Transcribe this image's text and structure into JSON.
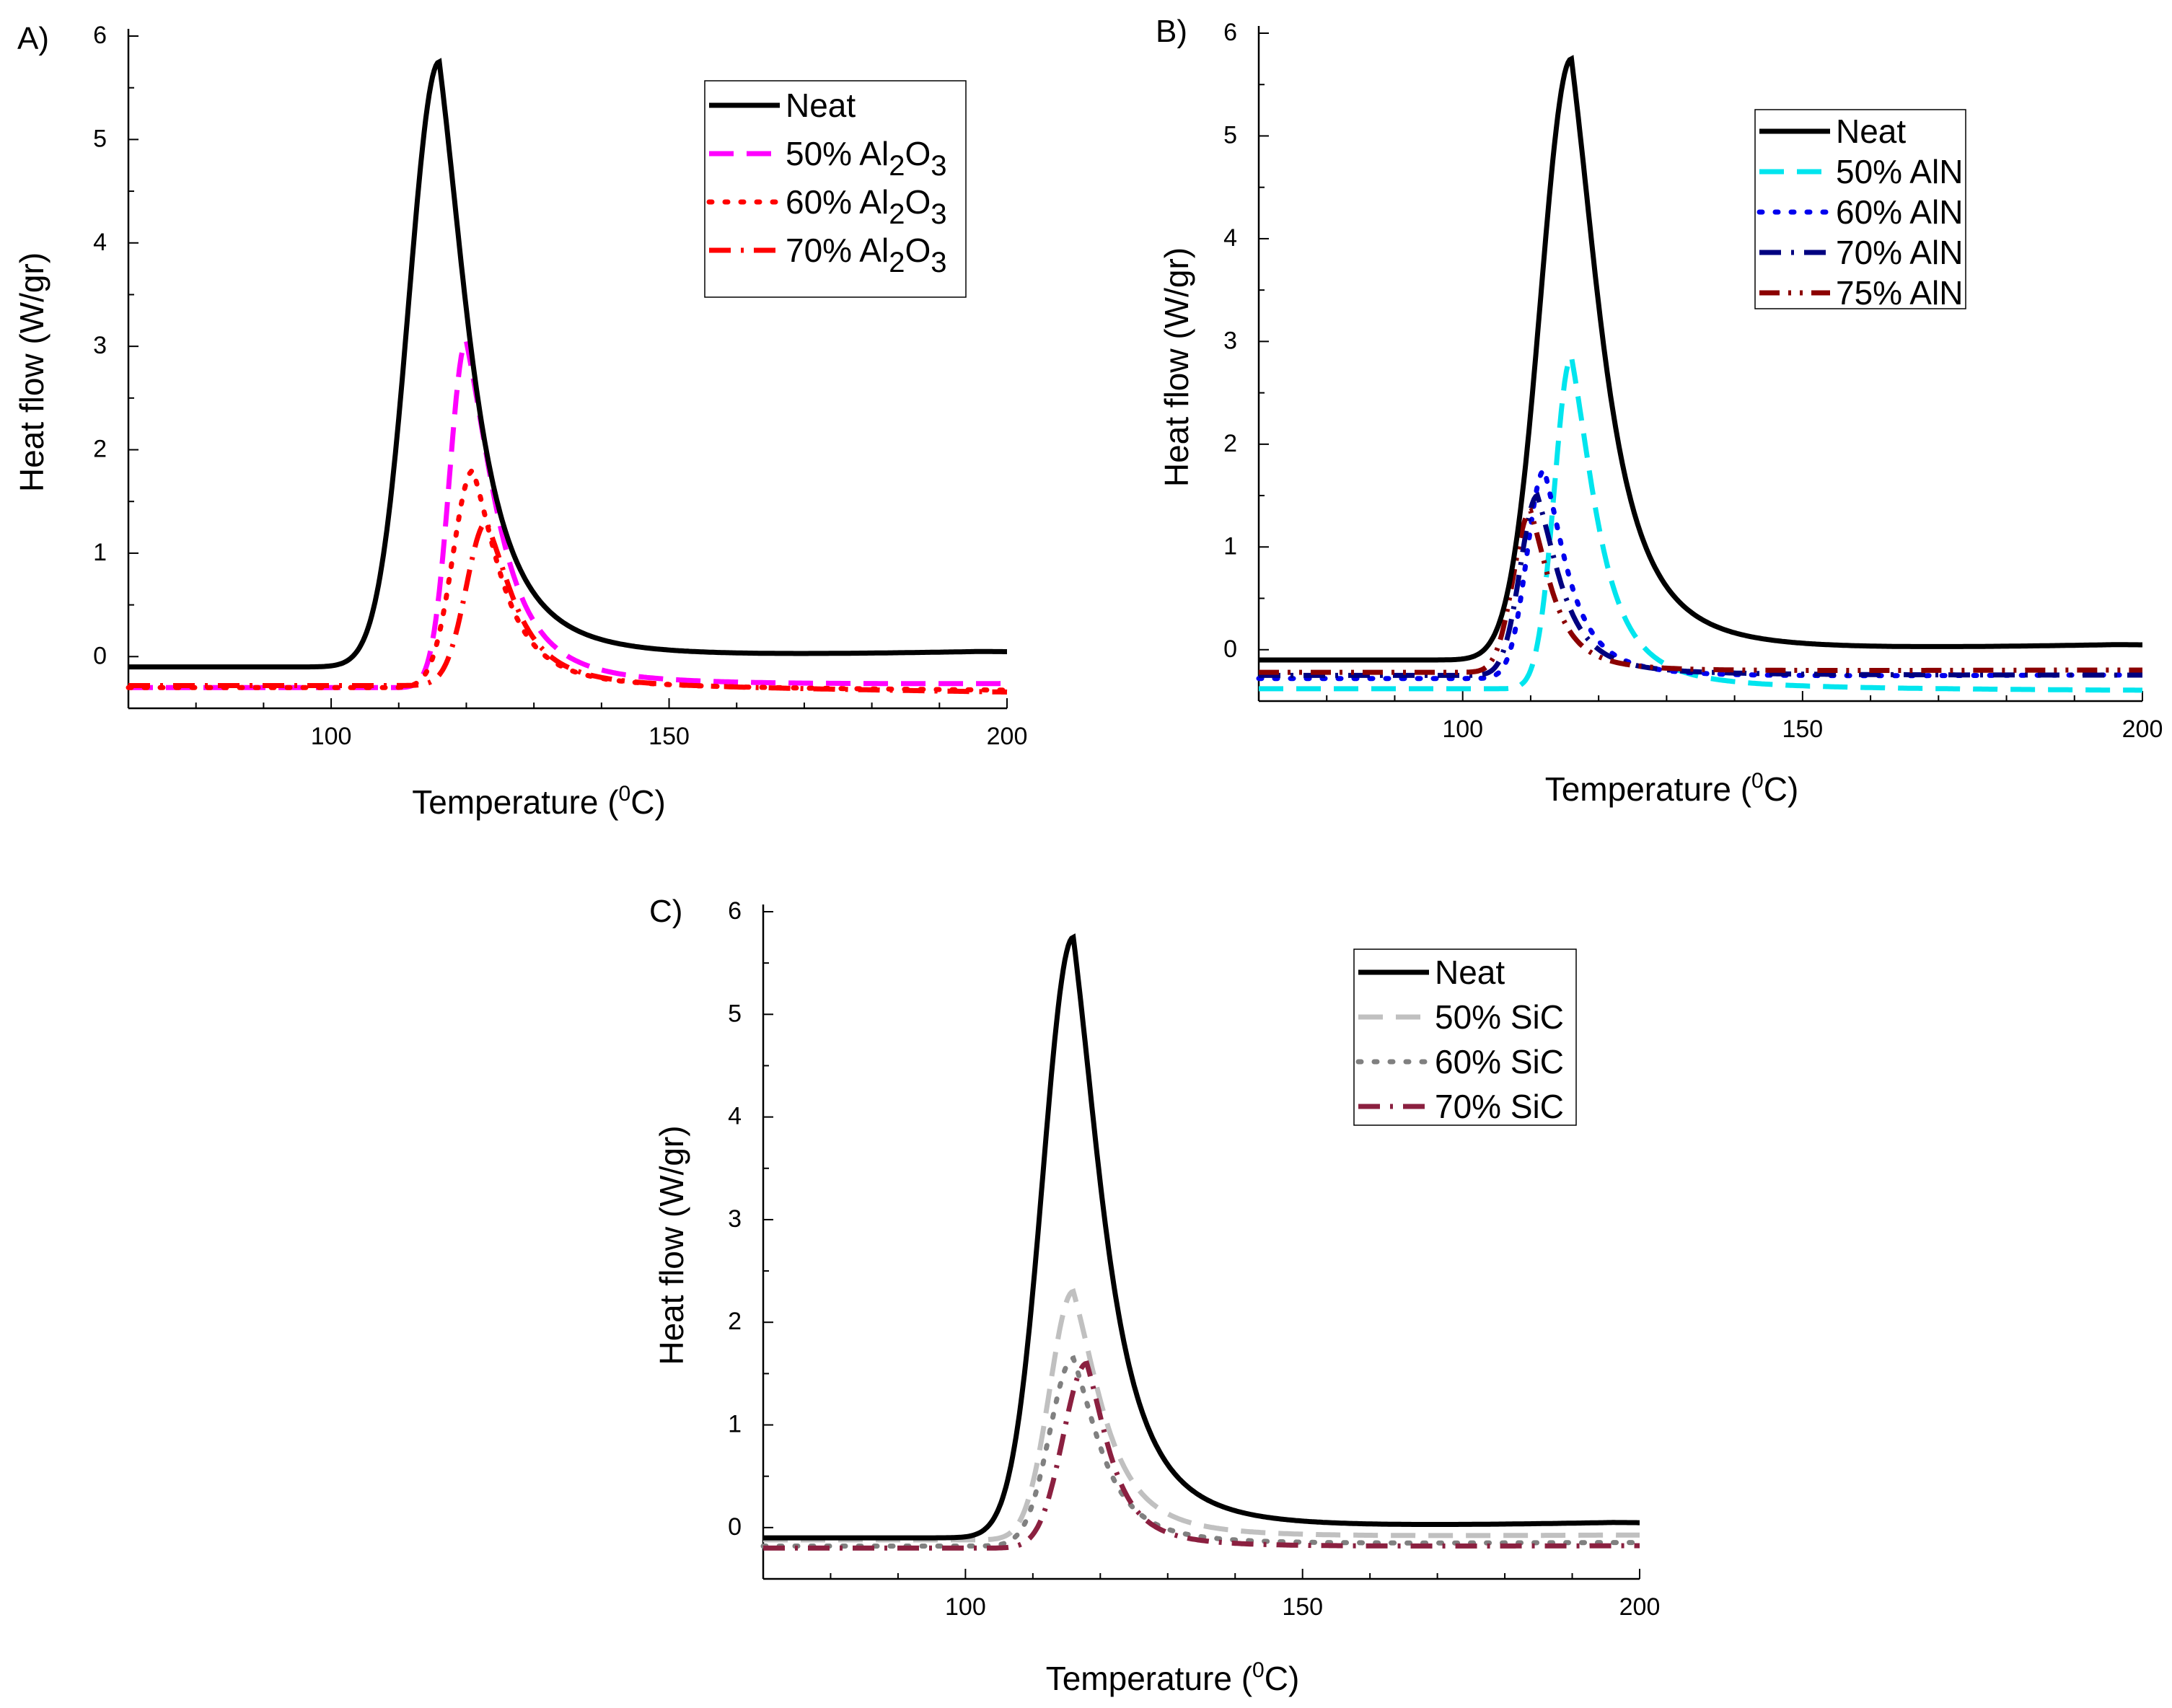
{
  "figure": {
    "description_free": true
  },
  "chart_data": [
    {
      "type": "line",
      "panel_label": "A)",
      "xlabel_main": "Temperature (",
      "xlabel_sup": "0",
      "xlabel_tail": "C)",
      "ylabel": "Heat flow (W/gr)",
      "xlim": [
        70,
        200
      ],
      "ylim": [
        -0.5,
        6
      ],
      "x_ticks": [
        "100",
        "150",
        "200"
      ],
      "x_tick_values": [
        100,
        150,
        200
      ],
      "y_ticks": [
        "0",
        "1",
        "2",
        "3",
        "4",
        "5",
        "6"
      ],
      "y_tick_values": [
        0,
        1,
        2,
        3,
        4,
        5,
        6
      ],
      "legend_position": "top-right",
      "series": [
        {
          "name_base": "Neat",
          "name_sub1": "",
          "name_mid": "",
          "name_sub2": "",
          "color": "#000000",
          "style": "solid",
          "baseline": -0.1,
          "onset": 102,
          "peak_x": 116,
          "peak_y": 5.75,
          "rise_width": 4.5,
          "tail_end": 0.03,
          "decay": 14
        },
        {
          "name_base": "50% Al",
          "name_sub1": "2",
          "name_mid": "O",
          "name_sub2": "3",
          "color": "#ff00ff",
          "style": "dash",
          "baseline": -0.3,
          "onset": 113,
          "peak_x": 120,
          "peak_y": 3.05,
          "rise_width": 2.5,
          "tail_end": -0.27,
          "decay": 13
        },
        {
          "name_base": "60% Al",
          "name_sub1": "2",
          "name_mid": "O",
          "name_sub2": "3",
          "color": "#ff0000",
          "style": "dot",
          "baseline": -0.3,
          "onset": 114,
          "peak_x": 121,
          "peak_y": 1.8,
          "rise_width": 3,
          "tail_end": -0.33,
          "decay": 12
        },
        {
          "name_base": "70% Al",
          "name_sub1": "2",
          "name_mid": "O",
          "name_sub2": "3",
          "color": "#ff0000",
          "style": "dashdot",
          "baseline": -0.28,
          "onset": 116,
          "peak_x": 123,
          "peak_y": 1.3,
          "rise_width": 3,
          "tail_end": -0.35,
          "decay": 12
        }
      ]
    },
    {
      "type": "line",
      "panel_label": "B)",
      "xlabel_main": "Temperature (",
      "xlabel_sup": "0",
      "xlabel_tail": "C)",
      "ylabel": "Heat flow (W/gr)",
      "xlim": [
        70,
        200
      ],
      "ylim": [
        -0.5,
        6
      ],
      "x_ticks": [
        "100",
        "150",
        "200"
      ],
      "x_tick_values": [
        100,
        150,
        200
      ],
      "y_ticks": [
        "0",
        "1",
        "2",
        "3",
        "4",
        "5",
        "6"
      ],
      "y_tick_values": [
        0,
        1,
        2,
        3,
        4,
        5,
        6
      ],
      "legend_position": "top-right",
      "series": [
        {
          "name_base": "Neat",
          "name_sub1": "",
          "name_mid": "",
          "name_sub2": "",
          "color": "#000000",
          "style": "solid",
          "baseline": -0.1,
          "onset": 102,
          "peak_x": 116,
          "peak_y": 5.75,
          "rise_width": 4.5,
          "tail_end": 0.03,
          "decay": 14
        },
        {
          "name_base": "50% AlN",
          "name_sub1": "",
          "name_mid": "",
          "name_sub2": "",
          "color": "#00e5ee",
          "style": "dash",
          "baseline": -0.38,
          "onset": 108,
          "peak_x": 116,
          "peak_y": 2.85,
          "rise_width": 2.5,
          "tail_end": -0.4,
          "decay": 11
        },
        {
          "name_base": "60% AlN",
          "name_sub1": "",
          "name_mid": "",
          "name_sub2": "",
          "color": "#0000ee",
          "style": "dot",
          "baseline": -0.28,
          "onset": 104,
          "peak_x": 112,
          "peak_y": 1.75,
          "rise_width": 2.5,
          "tail_end": -0.25,
          "decay": 10
        },
        {
          "name_base": "70% AlN",
          "name_sub1": "",
          "name_mid": "",
          "name_sub2": "",
          "color": "#000080",
          "style": "dashdot",
          "baseline": -0.25,
          "onset": 104,
          "peak_x": 111,
          "peak_y": 1.5,
          "rise_width": 2.5,
          "tail_end": -0.25,
          "decay": 10
        },
        {
          "name_base": "75% AlN",
          "name_sub1": "",
          "name_mid": "",
          "name_sub2": "",
          "color": "#8b0000",
          "style": "dashdotdot",
          "baseline": -0.22,
          "onset": 103,
          "peak_x": 110,
          "peak_y": 1.35,
          "rise_width": 2.5,
          "tail_end": -0.2,
          "decay": 9
        }
      ]
    },
    {
      "type": "line",
      "panel_label": "C)",
      "xlabel_main": "Temperature (",
      "xlabel_sup": "0",
      "xlabel_tail": "C)",
      "ylabel": "Heat flow (W/gr)",
      "xlim": [
        70,
        200
      ],
      "ylim": [
        -0.5,
        6
      ],
      "x_ticks": [
        "100",
        "150",
        "200"
      ],
      "x_tick_values": [
        100,
        150,
        200
      ],
      "y_ticks": [
        "0",
        "1",
        "2",
        "3",
        "4",
        "5",
        "6"
      ],
      "y_tick_values": [
        0,
        1,
        2,
        3,
        4,
        5,
        6
      ],
      "legend_position": "top-right",
      "series": [
        {
          "name_base": "Neat",
          "name_sub1": "",
          "name_mid": "",
          "name_sub2": "",
          "color": "#000000",
          "style": "solid",
          "baseline": -0.1,
          "onset": 102,
          "peak_x": 116,
          "peak_y": 5.75,
          "rise_width": 4.5,
          "tail_end": 0.03,
          "decay": 14
        },
        {
          "name_base": "50% SiC",
          "name_sub1": "",
          "name_mid": "",
          "name_sub2": "",
          "color": "#c0c0c0",
          "style": "dash",
          "baseline": -0.12,
          "onset": 104,
          "peak_x": 116,
          "peak_y": 2.3,
          "rise_width": 3.5,
          "tail_end": -0.08,
          "decay": 13
        },
        {
          "name_base": "60% SiC",
          "name_sub1": "",
          "name_mid": "",
          "name_sub2": "",
          "color": "#808080",
          "style": "dot",
          "baseline": -0.18,
          "onset": 104,
          "peak_x": 116,
          "peak_y": 1.65,
          "rise_width": 3.5,
          "tail_end": -0.15,
          "decay": 12
        },
        {
          "name_base": "70% SiC",
          "name_sub1": "",
          "name_mid": "",
          "name_sub2": "",
          "color": "#8b2040",
          "style": "dashdot",
          "baseline": -0.2,
          "onset": 105,
          "peak_x": 118,
          "peak_y": 1.6,
          "rise_width": 3.5,
          "tail_end": -0.18,
          "decay": 10
        }
      ]
    }
  ]
}
